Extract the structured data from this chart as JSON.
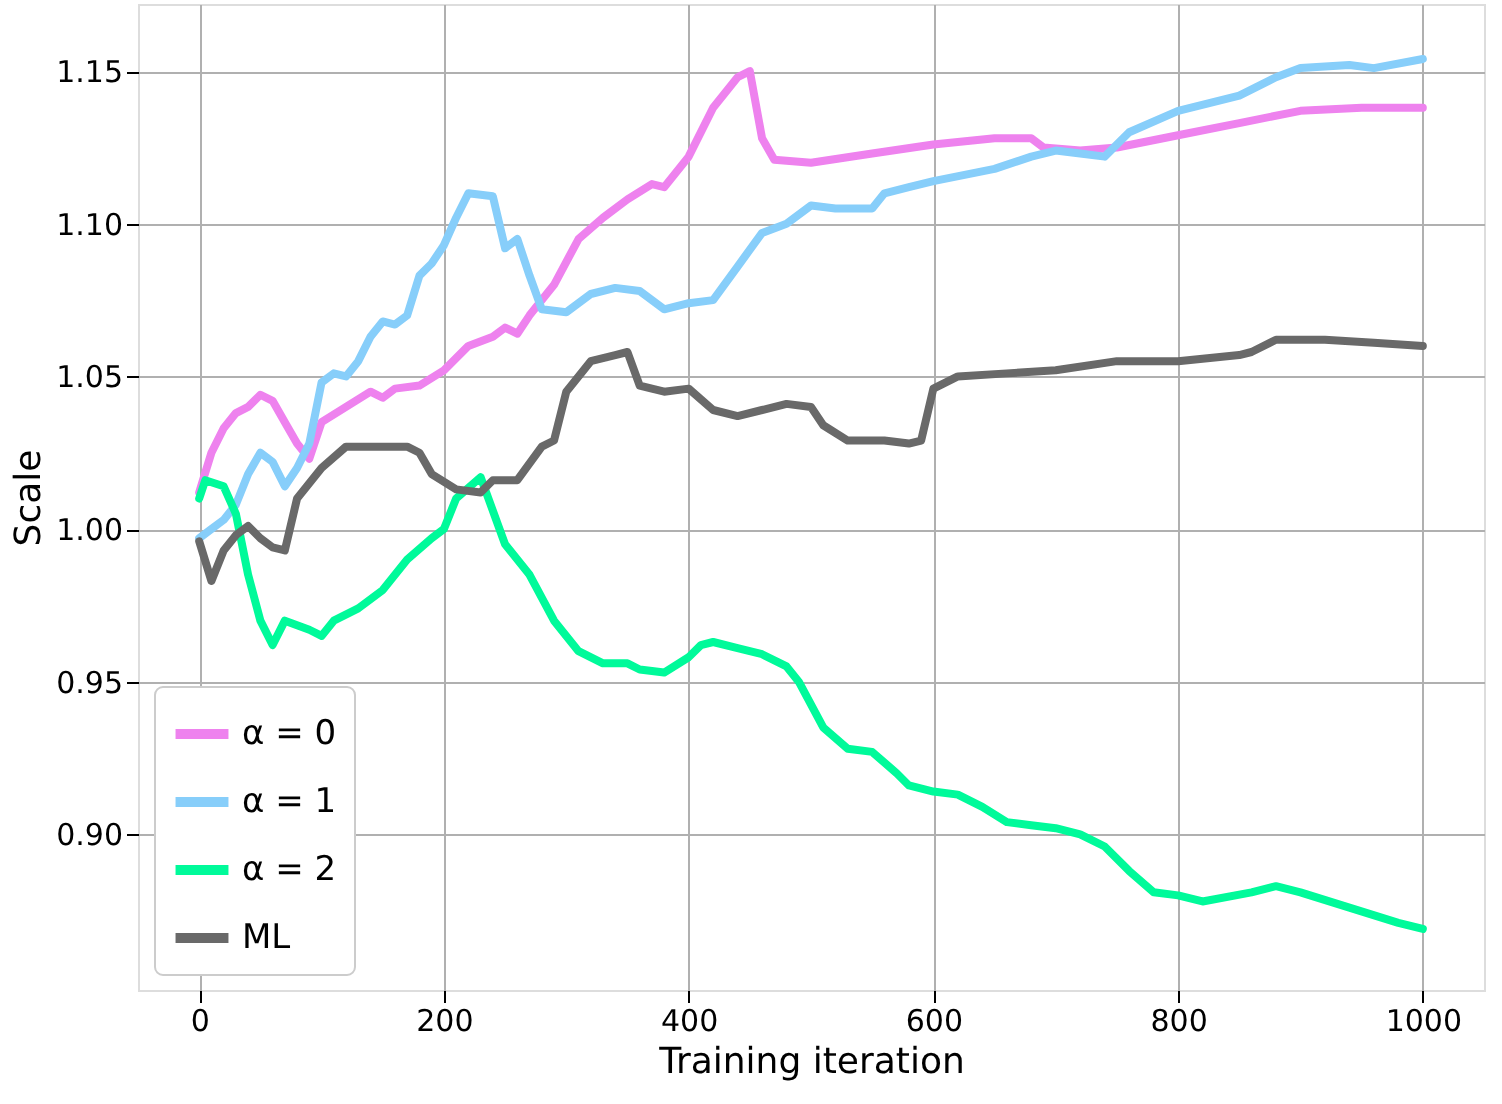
{
  "chart_data": {
    "type": "line",
    "xlabel": "Training iteration",
    "ylabel": "Scale",
    "xlim": [
      -50,
      1050
    ],
    "ylim": [
      0.849,
      1.172
    ],
    "xticks": [
      0,
      200,
      400,
      600,
      800,
      1000
    ],
    "yticks": [
      {
        "value": 0.9,
        "label": "0.90"
      },
      {
        "value": 0.95,
        "label": "0.95"
      },
      {
        "value": 1.0,
        "label": "1.00"
      },
      {
        "value": 1.05,
        "label": "1.05"
      },
      {
        "value": 1.1,
        "label": "1.10"
      },
      {
        "value": 1.15,
        "label": "1.15"
      }
    ],
    "grid": true,
    "legend": "bottom left",
    "line_style": "solid",
    "marker": "none",
    "series": [
      {
        "name": "α = 0",
        "color": "#ee82ee",
        "x": [
          0,
          10,
          20,
          30,
          40,
          50,
          60,
          70,
          80,
          90,
          100,
          120,
          140,
          150,
          160,
          180,
          200,
          220,
          240,
          250,
          260,
          270,
          290,
          310,
          330,
          350,
          370,
          380,
          400,
          420,
          440,
          450,
          460,
          470,
          500,
          550,
          600,
          650,
          680,
          690,
          720,
          750,
          800,
          850,
          900,
          950,
          1000
        ],
        "values": [
          1.012,
          1.025,
          1.033,
          1.038,
          1.04,
          1.044,
          1.042,
          1.035,
          1.028,
          1.023,
          1.035,
          1.04,
          1.045,
          1.043,
          1.046,
          1.047,
          1.052,
          1.06,
          1.063,
          1.066,
          1.064,
          1.07,
          1.08,
          1.095,
          1.102,
          1.108,
          1.113,
          1.112,
          1.122,
          1.138,
          1.148,
          1.15,
          1.128,
          1.121,
          1.12,
          1.123,
          1.126,
          1.128,
          1.128,
          1.125,
          1.124,
          1.125,
          1.129,
          1.133,
          1.137,
          1.138,
          1.138
        ]
      },
      {
        "name": "α = 1",
        "color": "#87cefa",
        "x": [
          0,
          10,
          20,
          30,
          40,
          50,
          60,
          70,
          80,
          90,
          100,
          110,
          120,
          130,
          140,
          150,
          160,
          170,
          180,
          190,
          200,
          210,
          220,
          240,
          250,
          260,
          270,
          280,
          300,
          320,
          340,
          360,
          380,
          400,
          420,
          440,
          460,
          480,
          500,
          520,
          550,
          560,
          580,
          600,
          650,
          680,
          700,
          720,
          740,
          760,
          800,
          850,
          880,
          900,
          940,
          960,
          1000
        ],
        "values": [
          0.997,
          1.0,
          1.003,
          1.008,
          1.018,
          1.025,
          1.022,
          1.014,
          1.02,
          1.028,
          1.048,
          1.051,
          1.05,
          1.055,
          1.063,
          1.068,
          1.067,
          1.07,
          1.083,
          1.087,
          1.093,
          1.102,
          1.11,
          1.109,
          1.092,
          1.095,
          1.083,
          1.072,
          1.071,
          1.077,
          1.079,
          1.078,
          1.072,
          1.074,
          1.075,
          1.086,
          1.097,
          1.1,
          1.106,
          1.105,
          1.105,
          1.11,
          1.112,
          1.114,
          1.118,
          1.122,
          1.124,
          1.123,
          1.122,
          1.13,
          1.137,
          1.142,
          1.148,
          1.151,
          1.152,
          1.151,
          1.154
        ]
      },
      {
        "name": "α = 2",
        "color": "#00fa9a",
        "x": [
          0,
          5,
          20,
          30,
          40,
          50,
          60,
          70,
          90,
          100,
          110,
          130,
          150,
          170,
          190,
          200,
          210,
          230,
          250,
          270,
          290,
          310,
          330,
          350,
          360,
          380,
          400,
          410,
          420,
          440,
          460,
          480,
          490,
          510,
          530,
          550,
          570,
          580,
          600,
          620,
          640,
          660,
          680,
          700,
          720,
          740,
          760,
          780,
          800,
          820,
          860,
          880,
          900,
          940,
          980,
          1000
        ],
        "values": [
          1.01,
          1.016,
          1.014,
          1.005,
          0.985,
          0.97,
          0.962,
          0.97,
          0.967,
          0.965,
          0.97,
          0.974,
          0.98,
          0.99,
          0.997,
          1.0,
          1.01,
          1.017,
          0.995,
          0.985,
          0.97,
          0.96,
          0.956,
          0.956,
          0.954,
          0.953,
          0.958,
          0.962,
          0.963,
          0.961,
          0.959,
          0.955,
          0.95,
          0.935,
          0.928,
          0.927,
          0.92,
          0.916,
          0.914,
          0.913,
          0.909,
          0.904,
          0.903,
          0.902,
          0.9,
          0.896,
          0.888,
          0.881,
          0.88,
          0.878,
          0.881,
          0.883,
          0.881,
          0.876,
          0.871,
          0.869
        ]
      },
      {
        "name": "ML",
        "color": "#696969",
        "x": [
          0,
          10,
          20,
          30,
          40,
          50,
          60,
          70,
          80,
          100,
          120,
          140,
          170,
          180,
          190,
          210,
          230,
          240,
          260,
          280,
          290,
          300,
          320,
          340,
          350,
          360,
          380,
          400,
          420,
          440,
          460,
          480,
          500,
          510,
          530,
          560,
          580,
          590,
          600,
          620,
          660,
          700,
          750,
          800,
          850,
          860,
          880,
          920,
          960,
          1000
        ],
        "values": [
          0.996,
          0.983,
          0.993,
          0.998,
          1.001,
          0.997,
          0.994,
          0.993,
          1.01,
          1.02,
          1.027,
          1.027,
          1.027,
          1.025,
          1.018,
          1.013,
          1.012,
          1.016,
          1.016,
          1.027,
          1.029,
          1.045,
          1.055,
          1.057,
          1.058,
          1.047,
          1.045,
          1.046,
          1.039,
          1.037,
          1.039,
          1.041,
          1.04,
          1.034,
          1.029,
          1.029,
          1.028,
          1.029,
          1.046,
          1.05,
          1.051,
          1.052,
          1.055,
          1.055,
          1.057,
          1.058,
          1.062,
          1.062,
          1.061,
          1.06
        ]
      }
    ]
  }
}
